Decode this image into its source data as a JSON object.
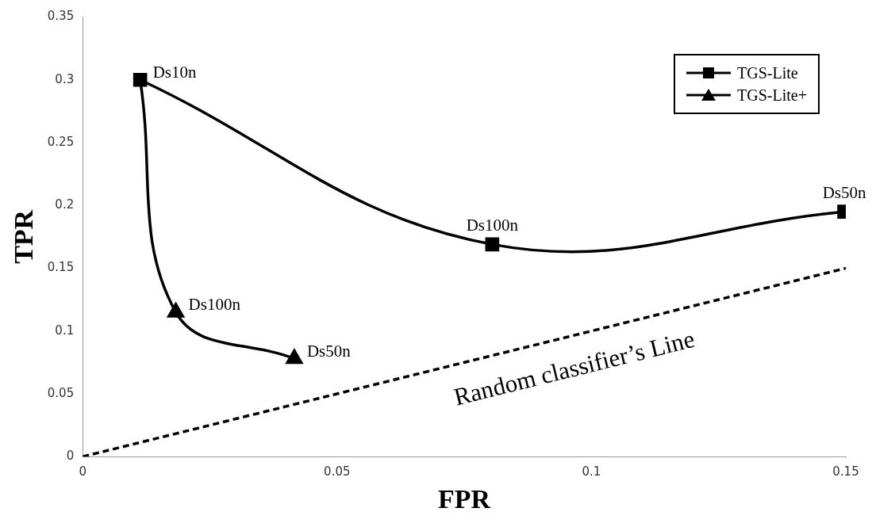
{
  "chart_data": {
    "type": "line",
    "xlabel": "FPR",
    "ylabel": "TPR",
    "xlim": [
      0,
      0.15
    ],
    "xticks": [
      0,
      0.05,
      0.1,
      0.15
    ],
    "ylim": [
      0,
      0.35
    ],
    "yticks": [
      0,
      0.05,
      0.1,
      0.15,
      0.2,
      0.25,
      0.3,
      0.35
    ],
    "grid": false,
    "legend": "top right",
    "series": [
      {
        "name": "TGS-Lite",
        "color": "#000000",
        "marker": "square",
        "x": [
          0.0113,
          0.0805,
          0.1497
        ],
        "values": [
          0.3,
          0.169,
          0.195
        ]
      },
      {
        "name": "TGS-Lite+",
        "color": "#000000",
        "marker": "triangle",
        "x": [
          0.0113,
          0.0183,
          0.0416
        ],
        "values": [
          0.3,
          0.115,
          0.078
        ]
      },
      {
        "color": "#000000",
        "marker": "none",
        "line_style": "dashed",
        "x": [
          0,
          0.15
        ],
        "values": [
          0,
          0.15
        ]
      }
    ],
    "annotations": [
      {
        "text": "Ds10n",
        "x": 0.0113,
        "y": 0.3
      },
      {
        "text": "Ds100n",
        "x": 0.0805,
        "y": 0.169
      },
      {
        "text": "Ds50n",
        "x": 0.1497,
        "y": 0.195
      },
      {
        "text": "Ds100n",
        "x": 0.0183,
        "y": 0.115
      },
      {
        "text": "Ds50n",
        "x": 0.0416,
        "y": 0.078
      },
      "Random classifier’s Line"
    ]
  }
}
